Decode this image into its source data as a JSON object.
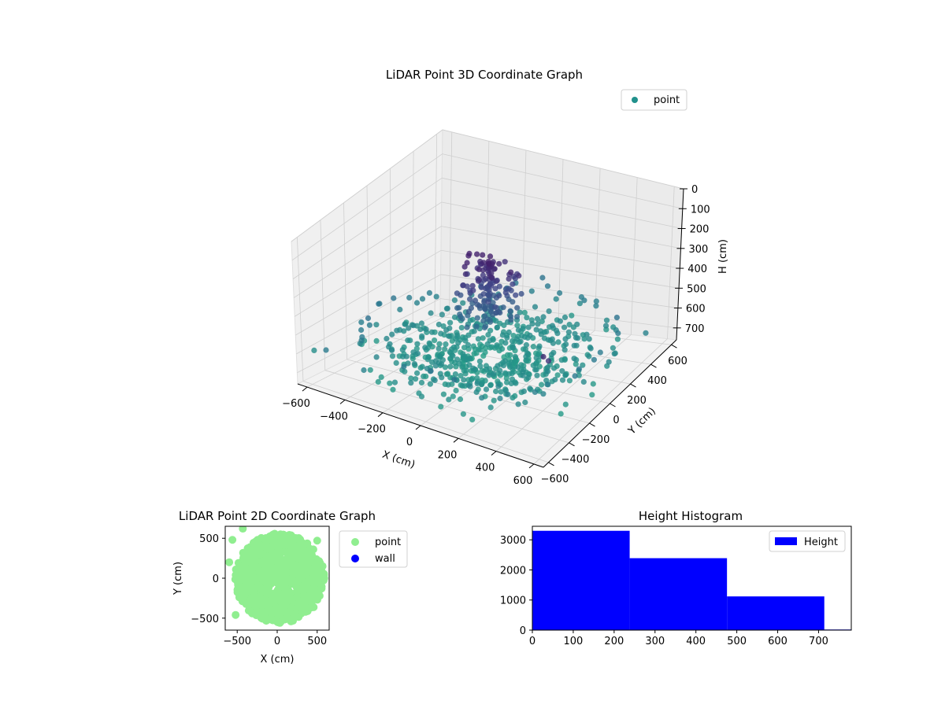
{
  "chart_data": [
    {
      "type": "scatter",
      "projection": "3d",
      "title": "LiDAR Point 3D Coordinate Graph",
      "xlabel": "X (cm)",
      "ylabel": "Y (cm)",
      "zlabel": "H (cm)",
      "xticks": [
        "−600",
        "−400",
        "−200",
        "0",
        "200",
        "400",
        "600"
      ],
      "yticks": [
        "−600",
        "−400",
        "−200",
        "0",
        "200",
        "400",
        "600"
      ],
      "zticks": [
        "0",
        "100",
        "200",
        "300",
        "400",
        "500",
        "600",
        "700"
      ],
      "xlim": [
        -650,
        650
      ],
      "ylim": [
        -650,
        650
      ],
      "zlim": [
        0,
        760
      ],
      "z_inverted": true,
      "grid": true,
      "colormap": "viridis",
      "legend": {
        "position": "top-right",
        "entries": [
          {
            "name": "point",
            "color": "#21918c"
          }
        ]
      },
      "series": [
        {
          "name": "point",
          "description_only": false
        }
      ]
    },
    {
      "type": "scatter",
      "title": "LiDAR Point 2D Coordinate Graph",
      "xlabel": "X (cm)",
      "ylabel": "Y (cm)",
      "xticks": [
        "−500",
        "0",
        "500"
      ],
      "yticks": [
        "−500",
        "0",
        "500"
      ],
      "xlim": [
        -650,
        650
      ],
      "ylim": [
        -650,
        650
      ],
      "legend": {
        "position": "right",
        "entries": [
          {
            "name": "point",
            "color": "#90ee90"
          },
          {
            "name": "wall",
            "color": "#0000ff"
          }
        ]
      }
    },
    {
      "type": "bar",
      "subtype": "histogram",
      "title": "Height Histogram",
      "xlabel": "",
      "ylabel": "",
      "bins": [
        [
          0,
          238
        ],
        [
          238,
          476
        ],
        [
          476,
          714
        ],
        [
          714,
          952
        ]
      ],
      "values": [
        3300,
        2390,
        1120,
        20
      ],
      "xlim": [
        0,
        780
      ],
      "ylim": [
        0,
        3450
      ],
      "xticks": [
        "0",
        "100",
        "200",
        "300",
        "400",
        "500",
        "600",
        "700"
      ],
      "yticks": [
        "0",
        "1000",
        "2000",
        "3000"
      ],
      "color": "#0000ff",
      "legend": {
        "position": "top-right",
        "entries": [
          {
            "name": "Height",
            "color": "#0000ff"
          }
        ]
      }
    }
  ]
}
